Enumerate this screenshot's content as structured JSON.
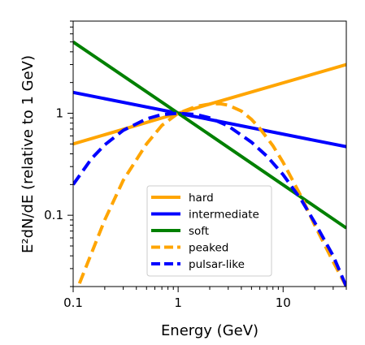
{
  "chart_data": {
    "type": "line",
    "xlabel": "Energy (GeV)",
    "ylabel": "E²dN/dE (relative to 1 GeV)",
    "xscale": "log",
    "yscale": "log",
    "xlim": [
      0.1,
      40
    ],
    "ylim": [
      0.02,
      8
    ],
    "x_ticks": [
      {
        "value": 0.1,
        "label": "0.1"
      },
      {
        "value": 1,
        "label": "1"
      },
      {
        "value": 10,
        "label": "10"
      }
    ],
    "y_ticks": [
      {
        "value": 0.1,
        "label": "0.1"
      },
      {
        "value": 1,
        "label": "1"
      }
    ],
    "grid": false,
    "legend_position": "lower-center",
    "series": [
      {
        "name": "hard",
        "color": "#FFA500",
        "style": "solid",
        "x": [
          0.1,
          1,
          40
        ],
        "y": [
          0.5,
          1,
          3.0
        ]
      },
      {
        "name": "intermediate",
        "color": "#0000FF",
        "style": "solid",
        "x": [
          0.1,
          1,
          40
        ],
        "y": [
          1.6,
          1,
          0.47
        ]
      },
      {
        "name": "soft",
        "color": "#008000",
        "style": "solid",
        "x": [
          0.1,
          1,
          40
        ],
        "y": [
          5.0,
          1,
          0.075
        ]
      },
      {
        "name": "peaked",
        "color": "#FFA500",
        "style": "dashed",
        "x": [
          0.1,
          0.2,
          0.3,
          0.5,
          0.7,
          1,
          1.5,
          2,
          2.5,
          3,
          4,
          5,
          6,
          8,
          10,
          15,
          20,
          30,
          40
        ],
        "y": [
          0.015,
          0.09,
          0.22,
          0.5,
          0.76,
          1.0,
          1.17,
          1.23,
          1.24,
          1.2,
          1.05,
          0.87,
          0.71,
          0.48,
          0.33,
          0.15,
          0.08,
          0.035,
          0.02
        ]
      },
      {
        "name": "pulsar-like",
        "color": "#0000FF",
        "style": "dashed",
        "x": [
          0.1,
          0.15,
          0.2,
          0.3,
          0.5,
          0.7,
          1,
          1.5,
          2,
          3,
          5,
          7,
          10,
          15,
          20,
          30,
          40
        ],
        "y": [
          0.2,
          0.36,
          0.49,
          0.68,
          0.88,
          0.97,
          1.0,
          0.97,
          0.9,
          0.75,
          0.52,
          0.38,
          0.25,
          0.14,
          0.085,
          0.04,
          0.02
        ]
      }
    ]
  }
}
